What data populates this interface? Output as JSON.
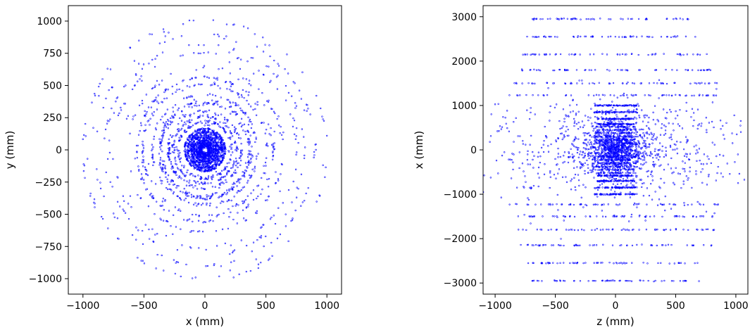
{
  "chart_data": [
    {
      "type": "scatter",
      "title": "",
      "xlabel": "x (mm)",
      "ylabel": "y (mm)",
      "xlim": [
        -1120,
        1120
      ],
      "ylim": [
        -1120,
        1120
      ],
      "x_ticks": [
        -1000,
        -500,
        0,
        500,
        1000
      ],
      "y_ticks": [
        -1000,
        -750,
        -500,
        -250,
        0,
        250,
        500,
        750,
        1000
      ],
      "x_tick_labels": [
        "−1000",
        "−500",
        "0",
        "500",
        "1000"
      ],
      "y_tick_labels": [
        "−1000",
        "−750",
        "−500",
        "−250",
        "0",
        "250",
        "500",
        "750",
        "1000"
      ],
      "grid": false,
      "legend": "none",
      "marker": "small hollow circle",
      "color": "#0000ff",
      "pattern": "concentric rings of hits",
      "dense_disc_radius_max": 170,
      "ring_radii": [
        32,
        45,
        58,
        72,
        90,
        110,
        140,
        165,
        220,
        260,
        300,
        360,
        380,
        430,
        510,
        560,
        640,
        760,
        820,
        900,
        1000
      ]
    },
    {
      "type": "scatter",
      "title": "",
      "xlabel": "z (mm)",
      "ylabel": "x (mm)",
      "xlim": [
        -1100,
        1100
      ],
      "ylim": [
        -3250,
        3250
      ],
      "x_ticks": [
        -1000,
        -500,
        0,
        500,
        1000
      ],
      "y_ticks": [
        -3000,
        -2000,
        -1000,
        0,
        1000,
        2000,
        3000
      ],
      "x_tick_labels": [
        "−1000",
        "−500",
        "0",
        "500",
        "1000"
      ],
      "y_tick_labels": [
        "−3000",
        "−2000",
        "−1000",
        "0",
        "1000",
        "2000",
        "3000"
      ],
      "grid": false,
      "legend": "none",
      "marker": "small hollow circle",
      "color": "#0000ff",
      "pattern": "horizontal layers plus central cluster",
      "layer_levels": [
        2950,
        2550,
        2150,
        1800,
        1500,
        1230,
        1000,
        850,
        700,
        580
      ],
      "layer_half_widths": [
        700,
        750,
        800,
        820,
        850,
        900,
        180,
        180,
        150,
        150
      ]
    }
  ]
}
